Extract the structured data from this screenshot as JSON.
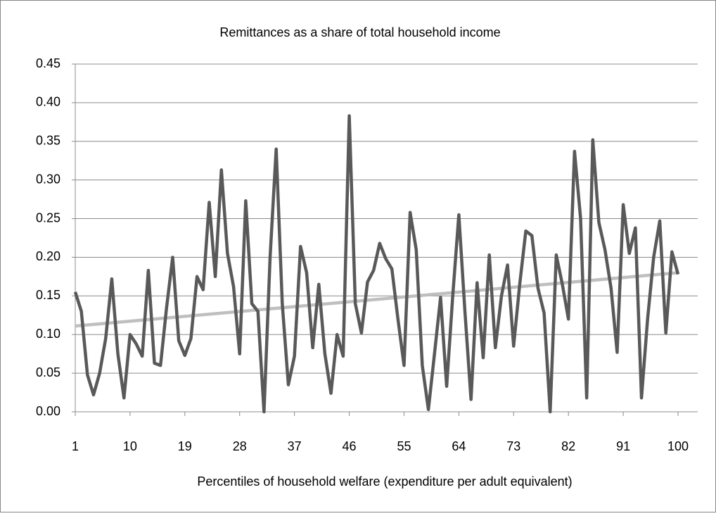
{
  "chart_data": {
    "type": "line",
    "title": "Remittances as a share of total household income",
    "xlabel": "Percentiles of household welfare (expenditure per adult equivalent)",
    "x": [
      1,
      2,
      3,
      4,
      5,
      6,
      7,
      8,
      9,
      10,
      11,
      12,
      13,
      14,
      15,
      16,
      17,
      18,
      19,
      20,
      21,
      22,
      23,
      24,
      25,
      26,
      27,
      28,
      29,
      30,
      31,
      32,
      33,
      34,
      35,
      36,
      37,
      38,
      39,
      40,
      41,
      42,
      43,
      44,
      45,
      46,
      47,
      48,
      49,
      50,
      51,
      52,
      53,
      54,
      55,
      56,
      57,
      58,
      59,
      60,
      61,
      62,
      63,
      64,
      65,
      66,
      67,
      68,
      69,
      70,
      71,
      72,
      73,
      74,
      75,
      76,
      77,
      78,
      79,
      80,
      81,
      82,
      83,
      84,
      85,
      86,
      87,
      88,
      89,
      90,
      91,
      92,
      93,
      94,
      95,
      96,
      97,
      98,
      99,
      100
    ],
    "series": [
      {
        "color": "#595959",
        "values": [
          0.155,
          0.13,
          0.048,
          0.022,
          0.05,
          0.095,
          0.172,
          0.075,
          0.018,
          0.1,
          0.088,
          0.072,
          0.183,
          0.063,
          0.06,
          0.135,
          0.2,
          0.092,
          0.073,
          0.095,
          0.175,
          0.158,
          0.271,
          0.175,
          0.313,
          0.205,
          0.162,
          0.075,
          0.273,
          0.14,
          0.13,
          0.0,
          0.2,
          0.34,
          0.14,
          0.035,
          0.072,
          0.214,
          0.18,
          0.083,
          0.165,
          0.075,
          0.024,
          0.1,
          0.072,
          0.383,
          0.14,
          0.102,
          0.168,
          0.183,
          0.218,
          0.198,
          0.185,
          0.12,
          0.06,
          0.258,
          0.21,
          0.06,
          0.003,
          0.075,
          0.148,
          0.033,
          0.15,
          0.255,
          0.13,
          0.016,
          0.167,
          0.07,
          0.203,
          0.083,
          0.15,
          0.19,
          0.085,
          0.165,
          0.234,
          0.228,
          0.16,
          0.128,
          0.0,
          0.203,
          0.165,
          0.12,
          0.337,
          0.25,
          0.018,
          0.352,
          0.245,
          0.21,
          0.16,
          0.077,
          0.268,
          0.205,
          0.238,
          0.018,
          0.12,
          0.2,
          0.247,
          0.102,
          0.207,
          0.178
        ]
      },
      {
        "color": "#bfbfbf",
        "x": [
          1,
          100
        ],
        "values": [
          0.111,
          0.18
        ]
      }
    ],
    "xlim": [
      1,
      100
    ],
    "xticks": [
      1,
      10,
      19,
      28,
      37,
      46,
      55,
      64,
      73,
      82,
      91,
      100
    ],
    "ylim": [
      0,
      0.45
    ],
    "yticks": [
      {
        "value": 0,
        "label": "0.00"
      },
      {
        "value": 0.05,
        "label": "0.05"
      },
      {
        "value": 0.1,
        "label": "0.10"
      },
      {
        "value": 0.15,
        "label": "0.15"
      },
      {
        "value": 0.2,
        "label": "0.20"
      },
      {
        "value": 0.25,
        "label": "0.25"
      },
      {
        "value": 0.3,
        "label": "0.30"
      },
      {
        "value": 0.35,
        "label": "0.35"
      },
      {
        "value": 0.4,
        "label": "0.40"
      },
      {
        "value": 0.45,
        "label": "0.45"
      }
    ],
    "grid": true
  }
}
